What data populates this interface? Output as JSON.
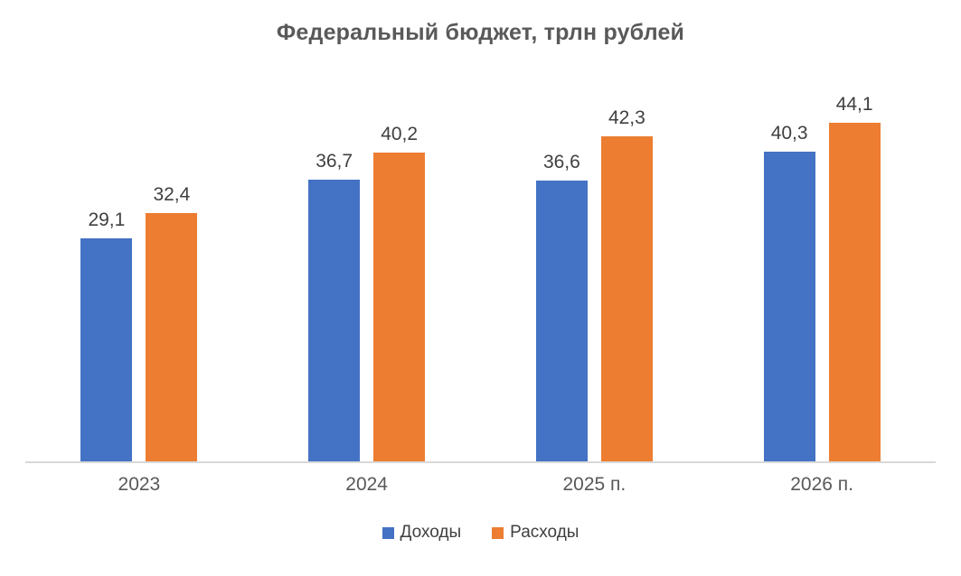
{
  "chart_data": {
    "type": "bar",
    "title": "Федеральный бюджет, трлн рублей",
    "categories": [
      "2023",
      "2024",
      "2025 п.",
      "2026 п."
    ],
    "series": [
      {
        "name": "Доходы",
        "color": "#4472C4",
        "values": [
          29.1,
          36.7,
          36.6,
          40.3
        ],
        "labels": [
          "29,1",
          "36,7",
          "36,6",
          "40,3"
        ]
      },
      {
        "name": "Расходы",
        "color": "#ED7D31",
        "values": [
          32.4,
          40.2,
          42.3,
          44.1
        ],
        "labels": [
          "32,4",
          "40,2",
          "42,3",
          "44,1"
        ]
      }
    ],
    "ylim": [
      0,
      50
    ],
    "grid": false,
    "y_axis_visible": false,
    "legend_position": "bottom",
    "axis_line_color": "#D9D9D9",
    "background_color": "#FFFFFF",
    "title_color": "#595959",
    "label_color": "#404040"
  }
}
